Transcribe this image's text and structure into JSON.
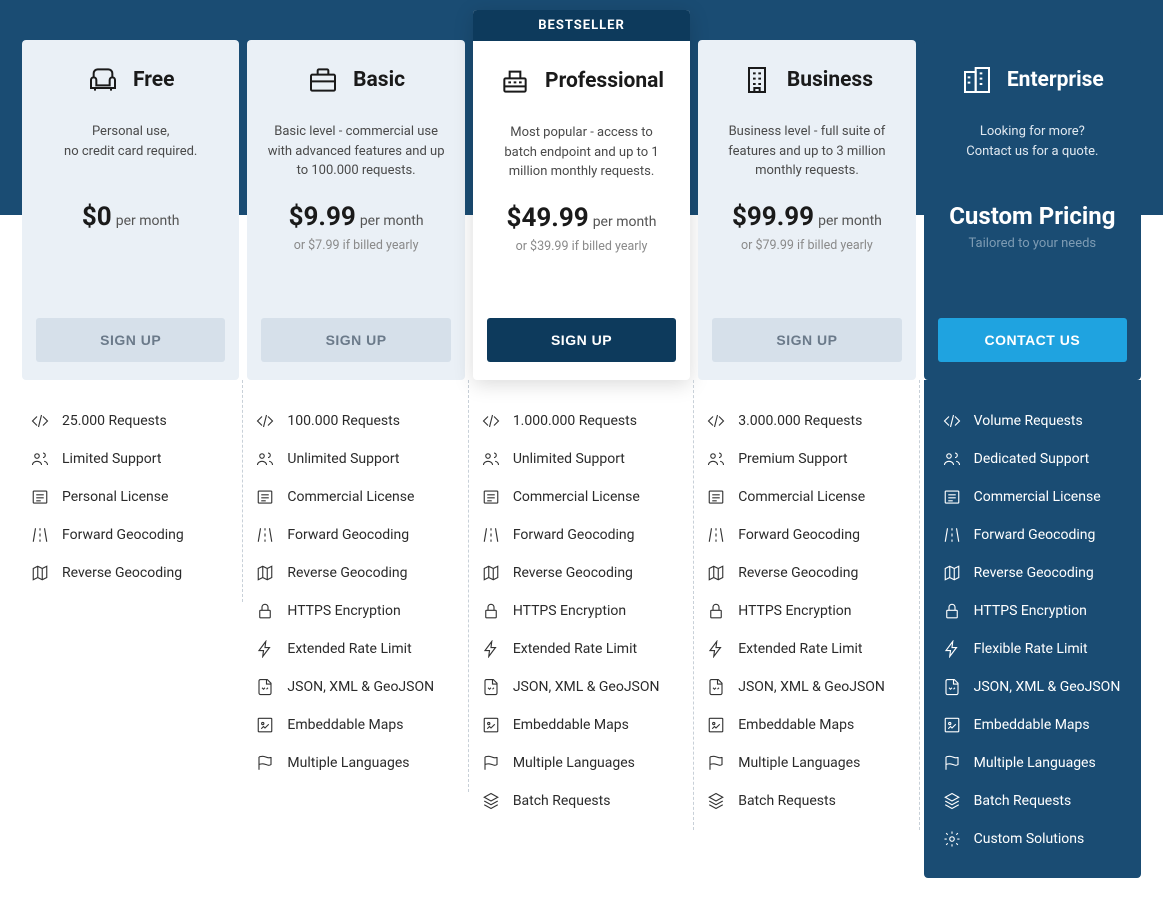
{
  "colors": {
    "page_bg_top": "#1a4c73",
    "card_light": "#eaf0f6",
    "card_white": "#ffffff",
    "card_enterprise": "#1a4c73",
    "btn_default_bg": "#d6e0ea",
    "btn_default_text": "#6b7a8a",
    "btn_primary_bg": "#0d3a5c",
    "btn_contact_bg": "#1fa3e0",
    "bestseller_bg": "#0d3a5c",
    "text_dark": "#1a1a1a",
    "text_muted": "#8a8a8a"
  },
  "bestseller_label": "BESTSELLER",
  "plans": [
    {
      "name": "Free",
      "icon": "armchair-icon",
      "desc": "Personal use,\nno credit card required.",
      "price": "$0",
      "period": "per month",
      "price_alt": "",
      "button": "SIGN UP",
      "button_style": "default",
      "featured": false,
      "enterprise": false,
      "features": [
        {
          "icon": "code-icon",
          "text": "25.000 Requests"
        },
        {
          "icon": "support-icon",
          "text": "Limited Support"
        },
        {
          "icon": "license-icon",
          "text": "Personal License"
        },
        {
          "icon": "road-icon",
          "text": "Forward Geocoding"
        },
        {
          "icon": "map-icon",
          "text": "Reverse Geocoding"
        }
      ]
    },
    {
      "name": "Basic",
      "icon": "briefcase-icon",
      "desc": "Basic level - commercial use with advanced features and up to 100.000 requests.",
      "price": "$9.99",
      "period": "per month",
      "price_alt": "or $7.99 if billed yearly",
      "button": "SIGN UP",
      "button_style": "default",
      "featured": false,
      "enterprise": false,
      "features": [
        {
          "icon": "code-icon",
          "text": "100.000 Requests"
        },
        {
          "icon": "support-icon",
          "text": "Unlimited Support"
        },
        {
          "icon": "license-icon",
          "text": "Commercial License"
        },
        {
          "icon": "road-icon",
          "text": "Forward Geocoding"
        },
        {
          "icon": "map-icon",
          "text": "Reverse Geocoding"
        },
        {
          "icon": "lock-icon",
          "text": "HTTPS Encryption"
        },
        {
          "icon": "bolt-icon",
          "text": "Extended Rate Limit"
        },
        {
          "icon": "file-icon",
          "text": "JSON, XML & GeoJSON"
        },
        {
          "icon": "embed-icon",
          "text": "Embeddable Maps"
        },
        {
          "icon": "flag-icon",
          "text": "Multiple Languages"
        }
      ]
    },
    {
      "name": "Professional",
      "icon": "register-icon",
      "desc": "Most popular - access to batch endpoint and up to 1 million monthly requests.",
      "price": "$49.99",
      "period": "per month",
      "price_alt": "or $39.99 if billed yearly",
      "button": "SIGN UP",
      "button_style": "primary",
      "featured": true,
      "enterprise": false,
      "features": [
        {
          "icon": "code-icon",
          "text": "1.000.000 Requests"
        },
        {
          "icon": "support-icon",
          "text": "Unlimited Support"
        },
        {
          "icon": "license-icon",
          "text": "Commercial License"
        },
        {
          "icon": "road-icon",
          "text": "Forward Geocoding"
        },
        {
          "icon": "map-icon",
          "text": "Reverse Geocoding"
        },
        {
          "icon": "lock-icon",
          "text": "HTTPS Encryption"
        },
        {
          "icon": "bolt-icon",
          "text": "Extended Rate Limit"
        },
        {
          "icon": "file-icon",
          "text": "JSON, XML & GeoJSON"
        },
        {
          "icon": "embed-icon",
          "text": "Embeddable Maps"
        },
        {
          "icon": "flag-icon",
          "text": "Multiple Languages"
        },
        {
          "icon": "layers-icon",
          "text": "Batch Requests"
        }
      ]
    },
    {
      "name": "Business",
      "icon": "building-icon",
      "desc": "Business level - full suite of features and up to 3 million monthly requests.",
      "price": "$99.99",
      "period": "per month",
      "price_alt": "or $79.99 if billed yearly",
      "button": "SIGN UP",
      "button_style": "default",
      "featured": false,
      "enterprise": false,
      "features": [
        {
          "icon": "code-icon",
          "text": "3.000.000 Requests"
        },
        {
          "icon": "support-icon",
          "text": "Premium Support"
        },
        {
          "icon": "license-icon",
          "text": "Commercial License"
        },
        {
          "icon": "road-icon",
          "text": "Forward Geocoding"
        },
        {
          "icon": "map-icon",
          "text": "Reverse Geocoding"
        },
        {
          "icon": "lock-icon",
          "text": "HTTPS Encryption"
        },
        {
          "icon": "bolt-icon",
          "text": "Extended Rate Limit"
        },
        {
          "icon": "file-icon",
          "text": "JSON, XML & GeoJSON"
        },
        {
          "icon": "embed-icon",
          "text": "Embeddable Maps"
        },
        {
          "icon": "flag-icon",
          "text": "Multiple Languages"
        },
        {
          "icon": "layers-icon",
          "text": "Batch Requests"
        }
      ]
    },
    {
      "name": "Enterprise",
      "icon": "enterprise-icon",
      "desc": "Looking for more?\nContact us for a quote.",
      "price": "Custom Pricing",
      "period": "",
      "price_alt": "Tailored to your needs",
      "button": "CONTACT US",
      "button_style": "contact",
      "featured": false,
      "enterprise": true,
      "features": [
        {
          "icon": "code-icon",
          "text": "Volume Requests"
        },
        {
          "icon": "support-icon",
          "text": "Dedicated Support"
        },
        {
          "icon": "license-icon",
          "text": "Commercial License"
        },
        {
          "icon": "road-icon",
          "text": "Forward Geocoding"
        },
        {
          "icon": "map-icon",
          "text": "Reverse Geocoding"
        },
        {
          "icon": "lock-icon",
          "text": "HTTPS Encryption"
        },
        {
          "icon": "bolt-icon",
          "text": "Flexible Rate Limit"
        },
        {
          "icon": "file-icon",
          "text": "JSON, XML & GeoJSON"
        },
        {
          "icon": "embed-icon",
          "text": "Embeddable Maps"
        },
        {
          "icon": "flag-icon",
          "text": "Multiple Languages"
        },
        {
          "icon": "layers-icon",
          "text": "Batch Requests"
        },
        {
          "icon": "gear-icon",
          "text": "Custom Solutions"
        }
      ]
    }
  ]
}
